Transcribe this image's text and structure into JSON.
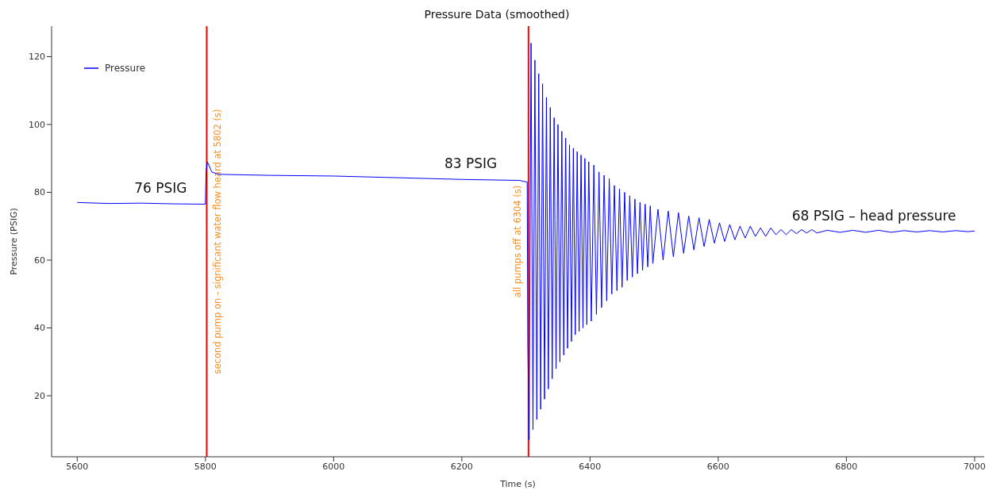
{
  "chart_data": {
    "type": "line",
    "title": "Pressure Data (smoothed)",
    "xlabel": "Time (s)",
    "ylabel": "Pressure (PSIG)",
    "xlim": [
      5560,
      7015
    ],
    "xticks": [
      5600,
      5800,
      6000,
      6200,
      6400,
      6600,
      6800,
      7000
    ],
    "ylim": [
      2,
      129
    ],
    "yticks": [
      20,
      40,
      60,
      80,
      100,
      120
    ],
    "grid": false,
    "legend": "top left",
    "marker": "none",
    "line_style": "solid",
    "series": [
      {
        "name": "Pressure",
        "color": "#0000ff",
        "x": [
          5600,
          5650,
          5700,
          5750,
          5800,
          5801,
          5803,
          5810,
          5820,
          5900,
          6000,
          6100,
          6200,
          6290,
          6302,
          6303,
          6305,
          6308,
          6311,
          6314,
          6317,
          6320,
          6323,
          6326,
          6329,
          6332,
          6335,
          6338,
          6341,
          6344,
          6347,
          6350,
          6353,
          6356,
          6359,
          6362,
          6365,
          6368,
          6371,
          6374,
          6377,
          6380,
          6383,
          6386,
          6389,
          6392,
          6395,
          6398,
          6402,
          6406,
          6410,
          6414,
          6418,
          6422,
          6426,
          6430,
          6434,
          6438,
          6442,
          6446,
          6450,
          6454,
          6458,
          6462,
          6466,
          6470,
          6474,
          6478,
          6482,
          6486,
          6490,
          6494,
          6498,
          6506,
          6514,
          6522,
          6530,
          6538,
          6546,
          6554,
          6562,
          6570,
          6578,
          6586,
          6594,
          6602,
          6610,
          6618,
          6626,
          6634,
          6642,
          6650,
          6658,
          6666,
          6674,
          6682,
          6690,
          6698,
          6706,
          6714,
          6722,
          6730,
          6738,
          6746,
          6754,
          6770,
          6790,
          6810,
          6830,
          6850,
          6870,
          6890,
          6910,
          6930,
          6950,
          6970,
          6990,
          7000
        ],
        "values": [
          77,
          76.7,
          76.8,
          76.6,
          76.5,
          86,
          89,
          86,
          85.3,
          85,
          84.8,
          84.3,
          83.8,
          83.5,
          83,
          35,
          7,
          124,
          10,
          119,
          13,
          115,
          16,
          112,
          19,
          108,
          22,
          105,
          25,
          102,
          28,
          100,
          30,
          98,
          32,
          96,
          34,
          94,
          36,
          93,
          38,
          92,
          39,
          91,
          40,
          90,
          41,
          89,
          42,
          88,
          44,
          86,
          46,
          85,
          48,
          84,
          50,
          82,
          51,
          81,
          52,
          80,
          54,
          79,
          55,
          78,
          56,
          77,
          57,
          76.5,
          58,
          76,
          59,
          75,
          60,
          74.5,
          61,
          74,
          62,
          73,
          63,
          72.5,
          64,
          72,
          65,
          71,
          65.5,
          70.5,
          66,
          70,
          66.5,
          70,
          67,
          69.5,
          67,
          69.5,
          67.5,
          69,
          67.5,
          69,
          67.8,
          69,
          68,
          69,
          68,
          68.8,
          68.2,
          68.8,
          68.2,
          68.8,
          68.2,
          68.7,
          68.3,
          68.7,
          68.3,
          68.7,
          68.4,
          68.6
        ]
      }
    ],
    "ref_lines": [
      {
        "axis": "x",
        "value": 5802,
        "label": "second pump on - significant water flow heard at 5802 (s)",
        "color": "#ff0000"
      },
      {
        "axis": "x",
        "value": 6304,
        "label": "all pumps off at 6304 (s)",
        "color": "#ff0000"
      }
    ],
    "annotations": [
      {
        "text": "76 PSIG",
        "x": 5730,
        "y": 76.7
      },
      {
        "text": "83 PSIG",
        "x": 6214,
        "y": 83.8
      },
      {
        "text": "68 PSIG – head pressure",
        "x": 6843,
        "y": 68.5
      }
    ]
  }
}
